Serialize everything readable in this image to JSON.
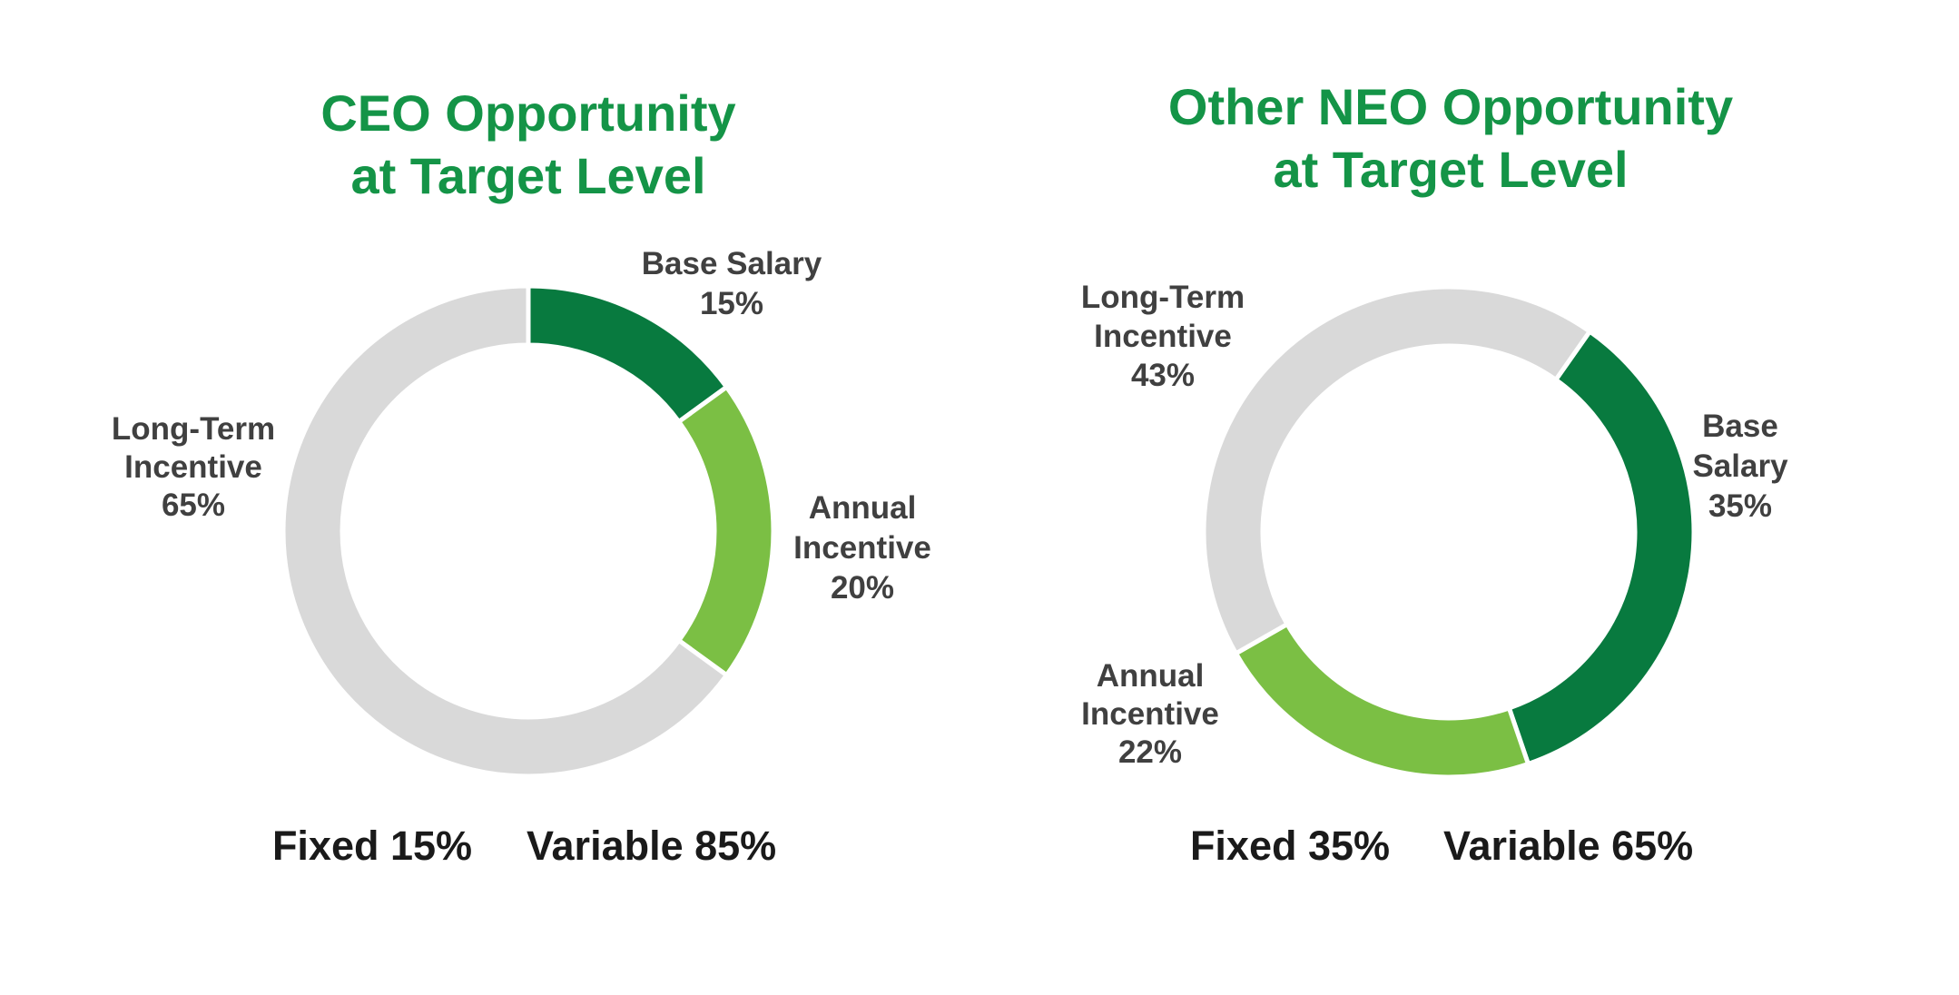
{
  "colors": {
    "title": "#149447",
    "label": "#404040",
    "summary": "#1a1a1a",
    "divider": "#ffffff"
  },
  "chart_data": [
    {
      "type": "pie",
      "style": "donut",
      "title_lines": [
        "CEO Opportunity",
        "at Target Level"
      ],
      "start": "12 o'clock",
      "direction": "clockwise",
      "slices": [
        {
          "name": "Base Salary",
          "value": 15,
          "label_lines": [
            "Base Salary",
            "15%"
          ],
          "color": "#087a3f"
        },
        {
          "name": "Annual Incentive",
          "value": 20,
          "label_lines": [
            "Annual",
            "Incentive",
            "20%"
          ],
          "color": "#7bbf44"
        },
        {
          "name": "Long-Term Incentive",
          "value": 65,
          "label_lines": [
            "Long-Term",
            "Incentive",
            "65%"
          ],
          "color": "#d9d9d9"
        }
      ],
      "summary": {
        "fixed": "Fixed 15%",
        "variable": "Variable 85%"
      }
    },
    {
      "type": "pie",
      "style": "donut",
      "title_lines": [
        "Other NEO Opportunity",
        "at Target Level"
      ],
      "start": "top-right",
      "direction": "clockwise",
      "slices": [
        {
          "name": "Base Salary",
          "value": 35,
          "label_lines": [
            "Base",
            "Salary",
            "35%"
          ],
          "color": "#087a3f"
        },
        {
          "name": "Annual Incentive",
          "value": 22,
          "label_lines": [
            "Annual",
            "Incentive",
            "22%"
          ],
          "color": "#7bbf44"
        },
        {
          "name": "Long-Term Incentive",
          "value": 43,
          "label_lines": [
            "Long-Term",
            "Incentive",
            "43%"
          ],
          "color": "#d9d9d9"
        }
      ],
      "summary": {
        "fixed": "Fixed 35%",
        "variable": "Variable 65%"
      }
    }
  ]
}
